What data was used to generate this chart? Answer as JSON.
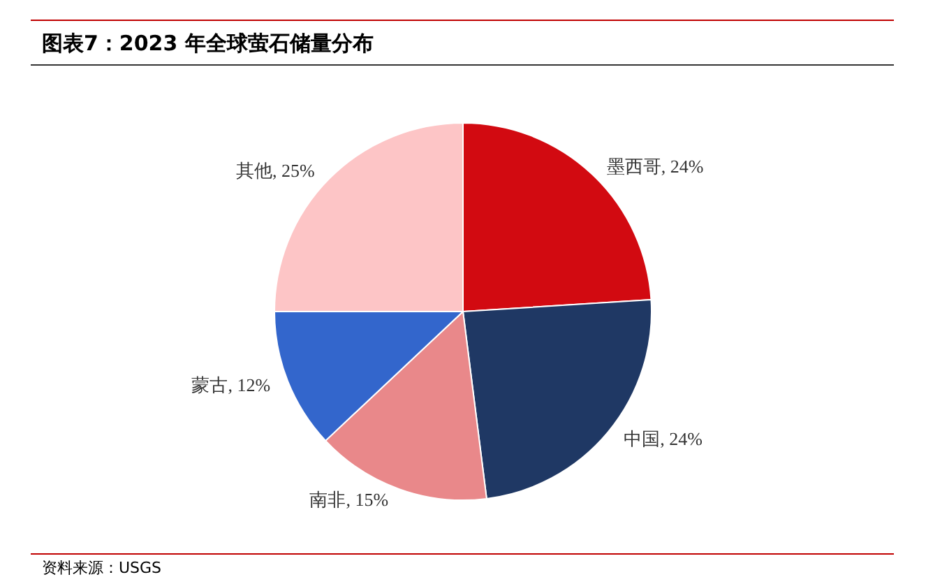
{
  "chart_data": {
    "type": "pie",
    "title": "图表7：2023 年全球萤石储量分布",
    "categories": [
      "墨西哥",
      "中国",
      "南非",
      "蒙古",
      "其他"
    ],
    "values": [
      24,
      24,
      15,
      12,
      25
    ],
    "value_labels": [
      "24%",
      "24%",
      "15%",
      "12%",
      "25%"
    ],
    "colors": [
      "#d20a11",
      "#1f3864",
      "#e9888a",
      "#3366cc",
      "#fdc5c6"
    ],
    "legend": false,
    "annotations": [
      "资料来源：USGS"
    ]
  }
}
